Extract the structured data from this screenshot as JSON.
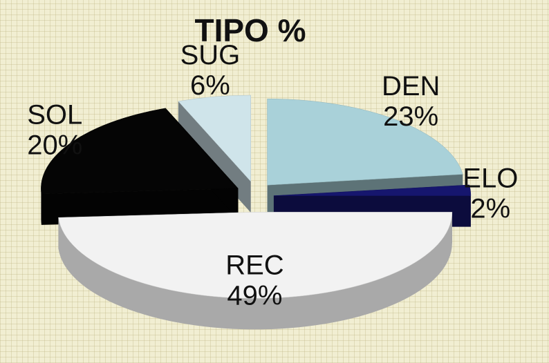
{
  "chart_data": {
    "type": "pie3d",
    "title": "TIPO %",
    "categories": [
      "DEN",
      "ELO",
      "REC",
      "SOL",
      "SUG"
    ],
    "values": [
      23,
      2,
      49,
      20,
      6
    ],
    "value_labels": [
      "23%",
      "2%",
      "49%",
      "20%",
      "6%"
    ],
    "colors": [
      "#a9d1d9",
      "#16166e",
      "#f2f2f2",
      "#050505",
      "#cfe4ea"
    ]
  }
}
